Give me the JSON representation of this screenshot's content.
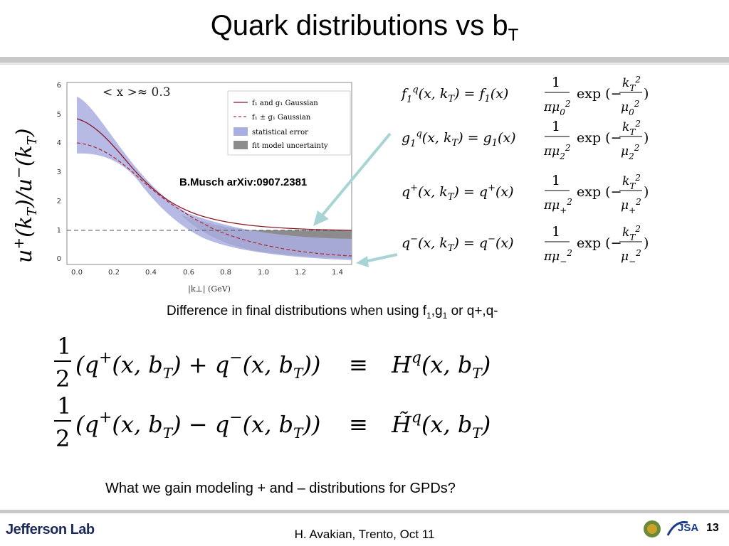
{
  "title": {
    "main": "Quark distributions vs b",
    "sub": "T"
  },
  "plot": {
    "ylabel": "u⁺(k_T)/u⁻(k_T)",
    "annotation": "< x >≈ 0.3",
    "xlabel": "|k⊥| (GeV)",
    "note": "B.Musch arXiv:0907.2381",
    "legend": [
      "f1 and g1 Gaussian",
      "f1 ± g1 Gaussian",
      "statistical error",
      "fit model uncertainty"
    ],
    "x_ticks": [
      "0.0",
      "0.2",
      "0.4",
      "0.6",
      "0.8",
      "1.0",
      "1.2",
      "1.4"
    ],
    "y_ticks": [
      "0",
      "1",
      "2",
      "3",
      "4",
      "5",
      "6"
    ]
  },
  "equations": [
    {
      "lhs": "f₁^q(x, k_T) = f₁(x)",
      "den": "πμ₀²",
      "exp": "exp (−k_T²/μ₀²)"
    },
    {
      "lhs": "g₁^q(x, k_T) = g₁(x)",
      "den": "πμ₂²",
      "exp": "exp (−k_T²/μ₂²)"
    },
    {
      "lhs": "q⁺(x, k_T) = q⁺(x)",
      "den": "πμ₊²",
      "exp": "exp (−k_T²/μ₊²)"
    },
    {
      "lhs": "q⁻(x, k_T) = q⁻(x)",
      "den": "πμ₋²",
      "exp": "exp (−k_T²/μ₋²)"
    }
  ],
  "caption": {
    "text": "Difference in final distributions when using f",
    "s1": "1",
    "mid": ",g",
    "s2": "1",
    "end": " or q+,q-"
  },
  "big_equations": [
    "½(q⁺(x,b_T) + q⁻(x,b_T)) ≡ H^q(x,b_T)",
    "½(q⁺(x,b_T) − q⁻(x,b_T)) ≡ H̃^q(x,b_T)"
  ],
  "question": "What we gain modeling + and – distributions for GPDs?",
  "footer": {
    "logo": "Jefferson Lab",
    "text": "H. Avakian, Trento, Oct 11",
    "page": "13",
    "logo2": "JSA"
  }
}
